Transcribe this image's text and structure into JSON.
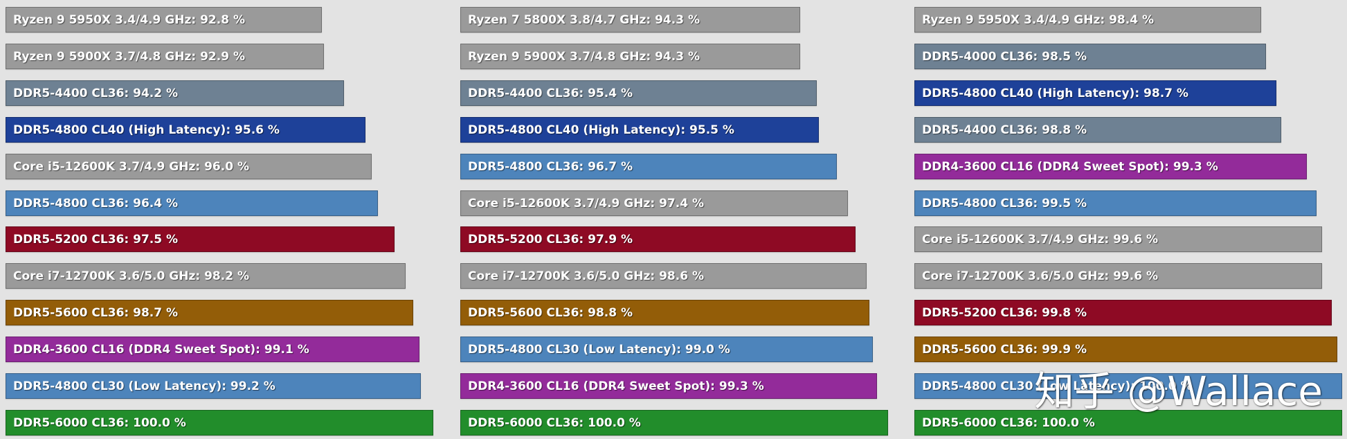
{
  "colors": {
    "Ryzen 9 5950X 3.4/4.9 GHz": "#9a9a9a",
    "Ryzen 9 5900X 3.7/4.8 GHz": "#9a9a9a",
    "Ryzen 7 5800X 3.8/4.7 GHz": "#9a9a9a",
    "Core i5-12600K 3.7/4.9 GHz": "#9a9a9a",
    "Core i7-12700K 3.6/5.0 GHz": "#9a9a9a",
    "DDR5-4000 CL36": "#6e8193",
    "DDR5-4400 CL36": "#6e8193",
    "DDR5-4800 CL40 (High Latency)": "#1e4199",
    "DDR5-4800 CL36": "#4d84bb",
    "DDR5-4800 CL30 (Low Latency)": "#4d84bb",
    "DDR5-5200 CL36": "#8e0a24",
    "DDR5-5600 CL36": "#935d08",
    "DDR4-3600 CL16 (DDR4 Sweet Spot)": "#932b9a",
    "DDR5-6000 CL36": "#228d2b"
  },
  "chart_data": [
    {
      "type": "bar",
      "orientation": "horizontal",
      "unit": "%",
      "categories": [
        "Ryzen 9 5950X 3.4/4.9 GHz",
        "Ryzen 9 5900X 3.7/4.8 GHz",
        "DDR5-4400 CL36",
        "DDR5-4800 CL40 (High Latency)",
        "Core i5-12600K 3.7/4.9 GHz",
        "DDR5-4800 CL36",
        "DDR5-5200 CL36",
        "Core i7-12700K 3.6/5.0 GHz",
        "DDR5-5600 CL36",
        "DDR4-3600 CL16 (DDR4 Sweet Spot)",
        "DDR5-4800 CL30 (Low Latency)",
        "DDR5-6000 CL36"
      ],
      "values": [
        92.8,
        92.9,
        94.2,
        95.6,
        96.0,
        96.4,
        97.5,
        98.2,
        98.7,
        99.1,
        99.2,
        100.0
      ],
      "labels": [
        "Ryzen 9 5950X 3.4/4.9 GHz: 92.8 %",
        "Ryzen 9 5900X 3.7/4.8 GHz: 92.9 %",
        "DDR5-4400 CL36: 94.2 %",
        "DDR5-4800 CL40 (High Latency): 95.6 %",
        "Core i5-12600K 3.7/4.9 GHz: 96.0 %",
        "DDR5-4800 CL36: 96.4 %",
        "DDR5-5200 CL36: 97.5 %",
        "Core i7-12700K 3.6/5.0 GHz: 98.2 %",
        "DDR5-5600 CL36: 98.7 %",
        "DDR4-3600 CL16 (DDR4 Sweet Spot): 99.1 %",
        "DDR5-4800 CL30 (Low Latency): 99.2 %",
        "DDR5-6000 CL36: 100.0 %"
      ]
    },
    {
      "type": "bar",
      "orientation": "horizontal",
      "unit": "%",
      "categories": [
        "Ryzen 7 5800X 3.8/4.7 GHz",
        "Ryzen 9 5900X 3.7/4.8 GHz",
        "DDR5-4400 CL36",
        "DDR5-4800 CL40 (High Latency)",
        "DDR5-4800 CL36",
        "Core i5-12600K 3.7/4.9 GHz",
        "DDR5-5200 CL36",
        "Core i7-12700K 3.6/5.0 GHz",
        "DDR5-5600 CL36",
        "DDR5-4800 CL30 (Low Latency)",
        "DDR4-3600 CL16 (DDR4 Sweet Spot)",
        "DDR5-6000 CL36"
      ],
      "values": [
        94.3,
        94.3,
        95.4,
        95.5,
        96.7,
        97.4,
        97.9,
        98.6,
        98.8,
        99.0,
        99.3,
        100.0
      ],
      "labels": [
        "Ryzen 7 5800X 3.8/4.7 GHz: 94.3 %",
        "Ryzen 9 5900X 3.7/4.8 GHz: 94.3 %",
        "DDR5-4400 CL36: 95.4 %",
        "DDR5-4800 CL40 (High Latency): 95.5 %",
        "DDR5-4800 CL36: 96.7 %",
        "Core i5-12600K 3.7/4.9 GHz: 97.4 %",
        "DDR5-5200 CL36: 97.9 %",
        "Core i7-12700K 3.6/5.0 GHz: 98.6 %",
        "DDR5-5600 CL36: 98.8 %",
        "DDR5-4800 CL30 (Low Latency): 99.0 %",
        "DDR4-3600 CL16 (DDR4 Sweet Spot): 99.3 %",
        "DDR5-6000 CL36: 100.0 %"
      ]
    },
    {
      "type": "bar",
      "orientation": "horizontal",
      "unit": "%",
      "categories": [
        "Ryzen 9 5950X 3.4/4.9 GHz",
        "DDR5-4000 CL36",
        "DDR5-4800 CL40 (High Latency)",
        "DDR5-4400 CL36",
        "DDR4-3600 CL16 (DDR4 Sweet Spot)",
        "DDR5-4800 CL36",
        "Core i5-12600K 3.7/4.9 GHz",
        "Core i7-12700K 3.6/5.0 GHz",
        "DDR5-5200 CL36",
        "DDR5-5600 CL36",
        "DDR5-4800 CL30 (Low Latency)",
        "DDR5-6000 CL36"
      ],
      "values": [
        98.4,
        98.5,
        98.7,
        98.8,
        99.3,
        99.5,
        99.6,
        99.6,
        99.8,
        99.9,
        100.0,
        100.0
      ],
      "labels": [
        "Ryzen 9 5950X 3.4/4.9 GHz: 98.4 %",
        "DDR5-4000 CL36: 98.5 %",
        "DDR5-4800 CL40 (High Latency): 98.7 %",
        "DDR5-4400 CL36: 98.8 %",
        "DDR4-3600 CL16 (DDR4 Sweet Spot): 99.3 %",
        "DDR5-4800 CL36: 99.5 %",
        "Core i5-12600K 3.7/4.9 GHz: 99.6 %",
        "Core i7-12700K 3.6/5.0 GHz: 99.6 %",
        "DDR5-5200 CL36: 99.8 %",
        "DDR5-5600 CL36: 99.9 %",
        "DDR5-4800 CL30 (Low Latency): 100.0 %",
        "DDR5-6000 CL36: 100.0 %"
      ]
    }
  ],
  "watermark": "知乎 @Wallace"
}
